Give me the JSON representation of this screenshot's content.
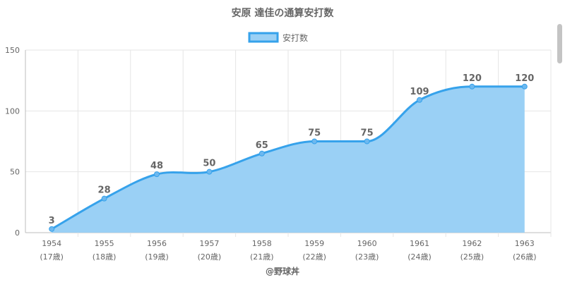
{
  "credit": "@野球丼",
  "chart_data": {
    "type": "area",
    "title": "安原 達佳の通算安打数",
    "categories": [
      "1954",
      "1955",
      "1956",
      "1957",
      "1958",
      "1959",
      "1960",
      "1961",
      "1962",
      "1963"
    ],
    "category_sublabels": [
      "(17歳)",
      "(18歳)",
      "(19歳)",
      "(20歳)",
      "(21歳)",
      "(22歳)",
      "(23歳)",
      "(24歳)",
      "(25歳)",
      "(26歳)"
    ],
    "series": [
      {
        "name": "安打数",
        "values": [
          3,
          28,
          48,
          50,
          65,
          75,
          75,
          109,
          120,
          120
        ]
      }
    ],
    "ylim": [
      0,
      150
    ],
    "yticks": [
      "0",
      "50",
      "100",
      "150"
    ],
    "grid": true,
    "legend": "top-center",
    "colors": {
      "line": "#36a2eb",
      "fill": "#9ad0f5",
      "grid": "#e5e5e5"
    }
  }
}
